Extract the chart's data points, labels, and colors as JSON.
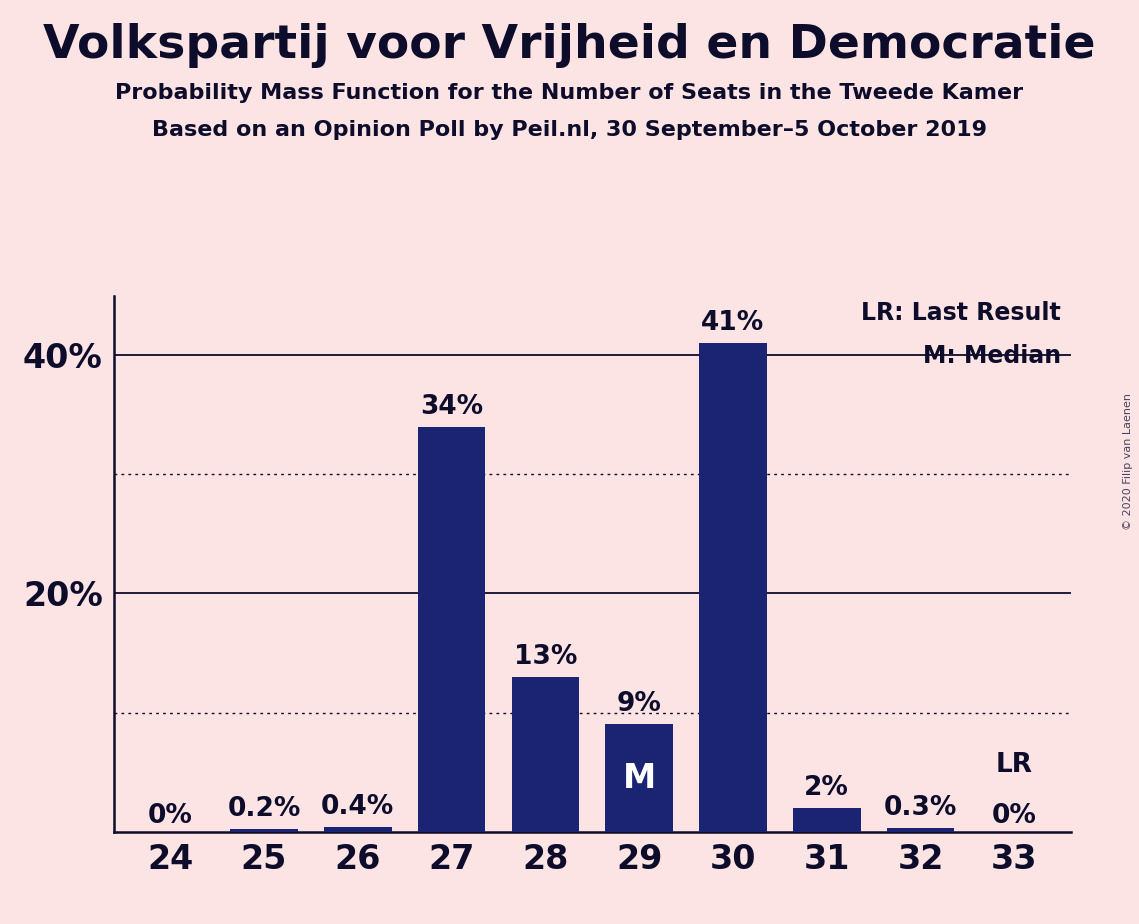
{
  "title": "Volkspartij voor Vrijheid en Democratie",
  "subtitle1": "Probability Mass Function for the Number of Seats in the Tweede Kamer",
  "subtitle2": "Based on an Opinion Poll by Peil.nl, 30 September–5 October 2019",
  "copyright": "© 2020 Filip van Laenen",
  "categories": [
    24,
    25,
    26,
    27,
    28,
    29,
    30,
    31,
    32,
    33
  ],
  "values": [
    0.0,
    0.2,
    0.4,
    34.0,
    13.0,
    9.0,
    41.0,
    2.0,
    0.3,
    0.0
  ],
  "labels": [
    "0%",
    "0.2%",
    "0.4%",
    "34%",
    "13%",
    "9%",
    "41%",
    "2%",
    "0.3%",
    "0%"
  ],
  "bar_color": "#1a2472",
  "background_color": "#fce4e4",
  "text_color": "#0d0d2b",
  "median_seat": 29,
  "lr_seat": 33,
  "legend_lr": "LR: Last Result",
  "legend_m": "M: Median",
  "ylim": [
    0,
    45
  ],
  "solid_gridlines": [
    20,
    40
  ],
  "dotted_gridlines": [
    10,
    30
  ]
}
